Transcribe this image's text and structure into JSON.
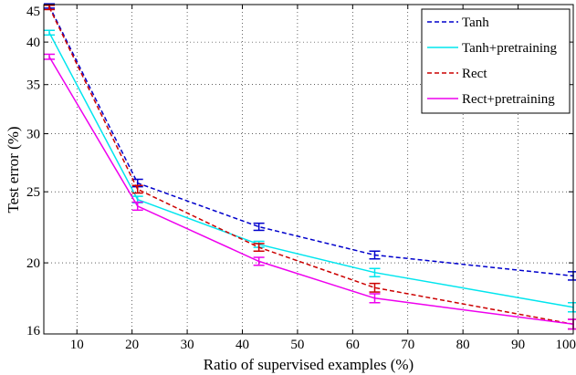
{
  "chart_data": {
    "type": "line",
    "title": "",
    "xlabel": "Ratio of supervised examples (%)",
    "ylabel": "Test error (%)",
    "yscale": "log",
    "xlim": [
      4,
      100
    ],
    "ylim": [
      16,
      45
    ],
    "grid": true,
    "legend_position": "top-right",
    "x": [
      5,
      21,
      43,
      64,
      100
    ],
    "xticks": [
      10,
      20,
      30,
      40,
      50,
      60,
      70,
      80,
      90,
      100
    ],
    "xtick_labels": [
      "10",
      "20",
      "30",
      "40",
      "50",
      "60",
      "70",
      "80",
      "90",
      "100"
    ],
    "yticks": [
      16,
      20,
      25,
      30,
      35,
      40,
      45
    ],
    "ytick_labels": [
      "16",
      "20",
      "25",
      "30",
      "35",
      "40",
      "45"
    ],
    "series": [
      {
        "name": "Tanh",
        "color": "#0000cc",
        "dash": "dashed",
        "values": [
          44.8,
          25.7,
          22.4,
          20.5,
          19.2
        ],
        "errors": [
          0.3,
          0.3,
          0.25,
          0.25,
          0.25
        ]
      },
      {
        "name": "Tanh+pretraining",
        "color": "#00e5ee",
        "dash": "solid",
        "values": [
          41.2,
          24.4,
          21.2,
          19.4,
          17.4
        ],
        "errors": [
          0.3,
          0.25,
          0.2,
          0.25,
          0.25
        ]
      },
      {
        "name": "Rect",
        "color": "#cc0000",
        "dash": "dashed",
        "values": [
          44.6,
          25.2,
          21.0,
          18.5,
          16.5
        ],
        "errors": [
          0.3,
          0.3,
          0.25,
          0.25,
          0.25
        ]
      },
      {
        "name": "Rect+pretraining",
        "color": "#ee00ee",
        "dash": "solid",
        "values": [
          38.2,
          23.9,
          20.1,
          17.9,
          16.5
        ],
        "errors": [
          0.3,
          0.3,
          0.25,
          0.25,
          0.25
        ]
      }
    ]
  }
}
